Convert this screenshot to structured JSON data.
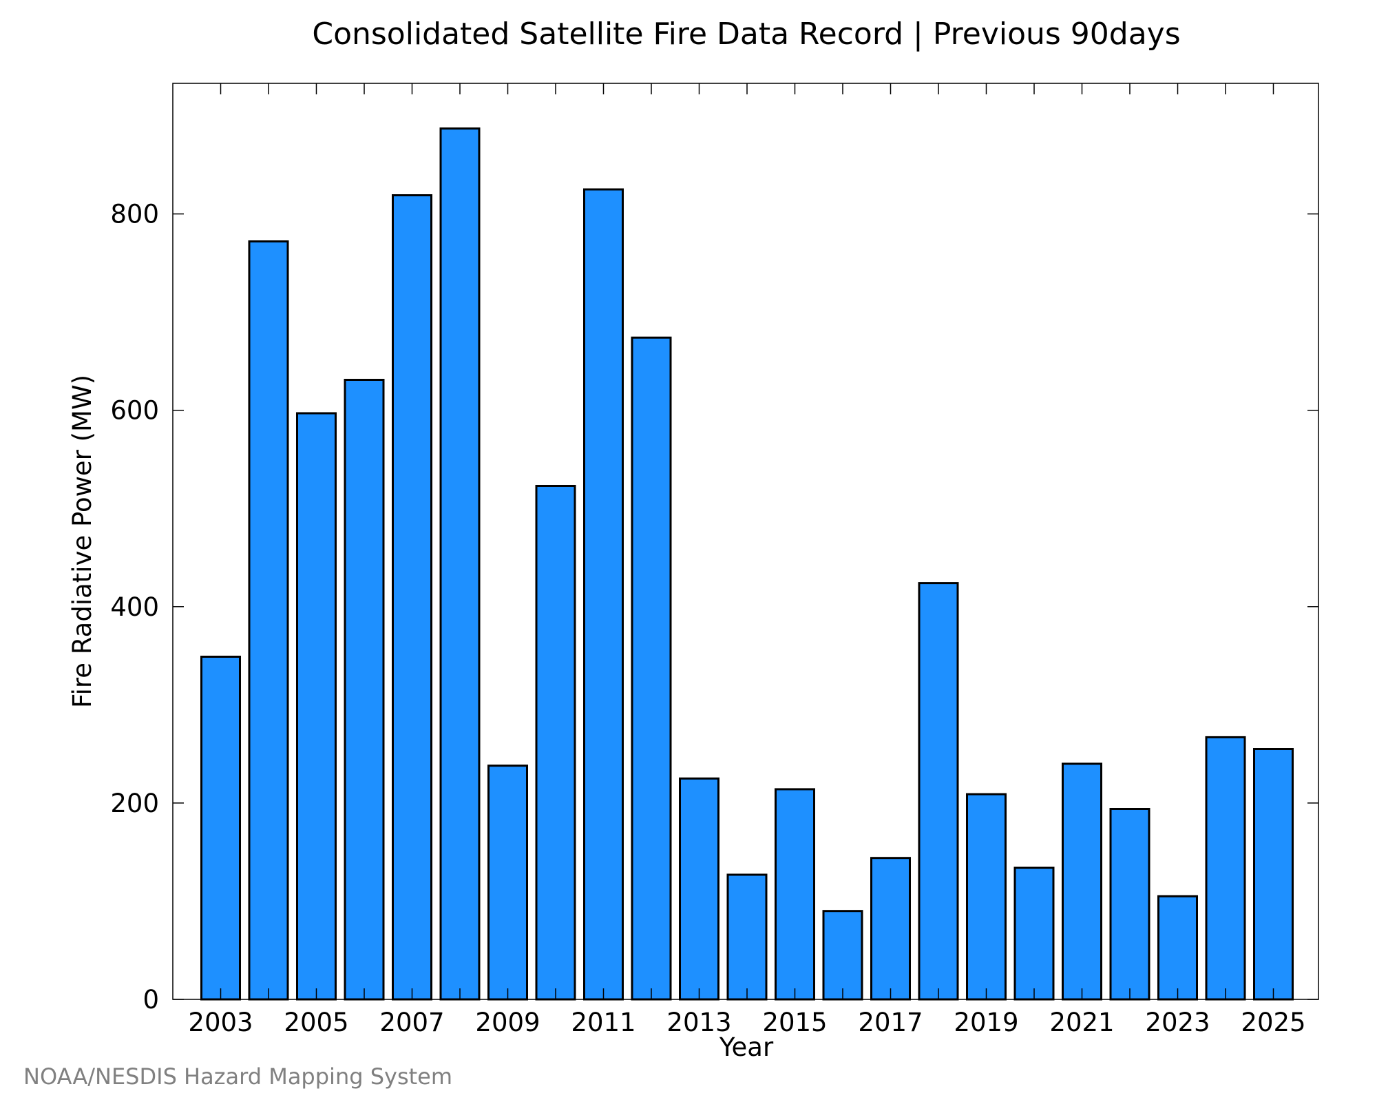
{
  "chart_data": {
    "type": "bar",
    "title": "Consolidated Satellite Fire Data Record | Previous 90days",
    "xlabel": "Year",
    "ylabel": "Fire Radiative Power (MW)",
    "categories": [
      "2003",
      "2004",
      "2005",
      "2006",
      "2007",
      "2008",
      "2009",
      "2010",
      "2011",
      "2012",
      "2013",
      "2014",
      "2015",
      "2016",
      "2017",
      "2018",
      "2019",
      "2020",
      "2021",
      "2022",
      "2023",
      "2024",
      "2025"
    ],
    "values": [
      349,
      772,
      597,
      631,
      819,
      887,
      238,
      523,
      825,
      674,
      225,
      127,
      214,
      90,
      144,
      424,
      209,
      134,
      240,
      194,
      105,
      267,
      255
    ],
    "x_tick_labels": [
      "2003",
      "2005",
      "2007",
      "2009",
      "2011",
      "2013",
      "2015",
      "2017",
      "2019",
      "2021",
      "2023",
      "2025"
    ],
    "y_ticks": [
      0,
      200,
      400,
      600,
      800
    ],
    "ylim": [
      0,
      933
    ],
    "grid": false,
    "legend": "none",
    "bar_color": "#1e90ff",
    "bar_edge_color": "#000000"
  },
  "footer": {
    "credit": "NOAA/NESDIS Hazard Mapping System"
  },
  "colors": {
    "credit_text": "#808080",
    "axis": "#000000"
  }
}
